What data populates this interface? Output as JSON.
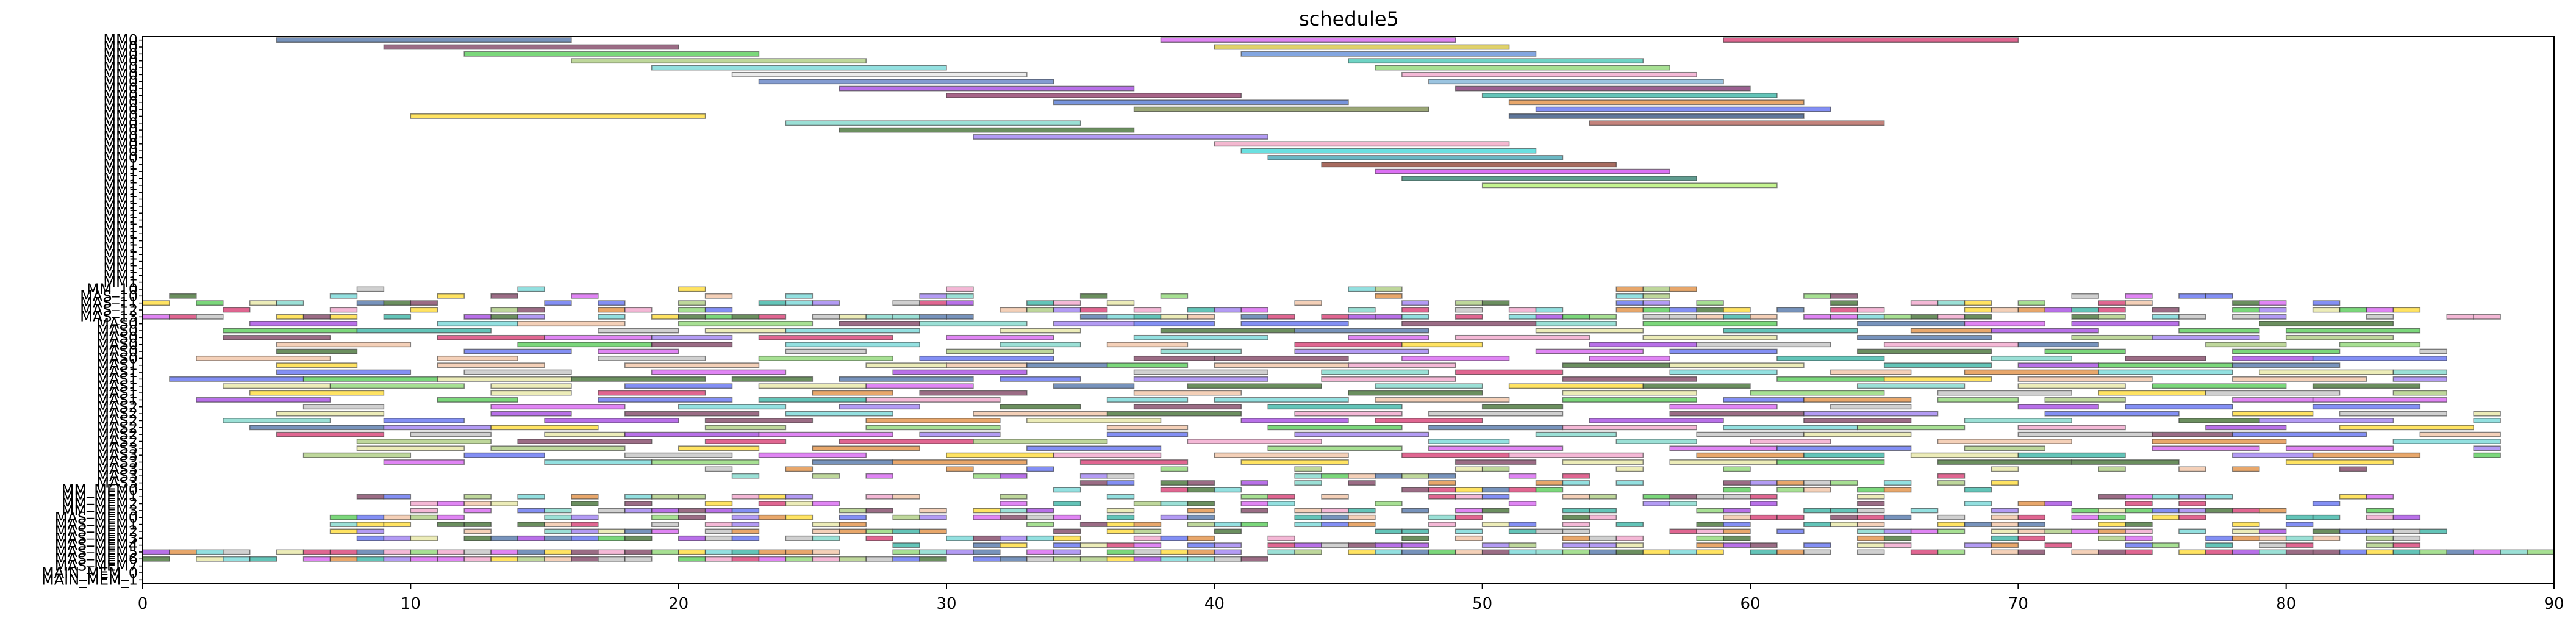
{
  "chart_data": {
    "type": "gantt",
    "title": "schedule5",
    "xlabel": "",
    "ylabel": "",
    "xlim": [
      0,
      90
    ],
    "xticks": [
      "0",
      "10",
      "20",
      "30",
      "40",
      "50",
      "60",
      "70",
      "80",
      "90"
    ],
    "grid": false,
    "rows": [
      "MM0",
      "MM0",
      "MM0",
      "MM0",
      "MM0",
      "MM0",
      "MM0",
      "MM0",
      "MM0",
      "MM0",
      "MM0",
      "MM0",
      "MM0",
      "MM0",
      "MM0",
      "MM0",
      "MM0",
      "MM0",
      "MM1",
      "MM1",
      "MM1",
      "MM1",
      "MM1",
      "MM1",
      "MM1",
      "MM1",
      "MM1",
      "MM1",
      "MM1",
      "MM1",
      "MM1",
      "MM1",
      "MM1",
      "MM1",
      "MM1",
      "MM1",
      "MM_10",
      "MAS_10",
      "MAS_11",
      "MAS_12",
      "MAS_13",
      "MAS0",
      "MAS0",
      "MAS0",
      "MAS0",
      "MAS0",
      "MAS0",
      "MAS1",
      "MAS1",
      "MAS1",
      "MAS1",
      "MAS1",
      "MAS1",
      "MAS2",
      "MAS2",
      "MAS2",
      "MAS2",
      "MAS2",
      "MAS2",
      "MAS3",
      "MAS3",
      "MAS3",
      "MAS3",
      "MAS3",
      "MAS3",
      "MM_MEM0",
      "MM_MEM1",
      "MM_MEM2",
      "MM_MEM3",
      "MAS_MEM0",
      "MAS_MEM1",
      "MAS_MEM2",
      "MAS_MEM3",
      "MAS_MEM4",
      "MAS_MEM5",
      "MAS_MEM6",
      "MAS_MEM7",
      "MAIN_MEM_0",
      "MAIN_MEM_1"
    ],
    "long_bars": [
      {
        "row": 0,
        "start": 5,
        "end": 16,
        "color": "#4a6fa5"
      },
      {
        "row": 0,
        "start": 38,
        "end": 49,
        "color": "#d65cf0"
      },
      {
        "row": 0,
        "start": 59,
        "end": 70,
        "color": "#d6336c"
      },
      {
        "row": 1,
        "start": 9,
        "end": 20,
        "color": "#7a3b5c"
      },
      {
        "row": 1,
        "start": 40,
        "end": 51,
        "color": "#d6c33a"
      },
      {
        "row": 2,
        "start": 12,
        "end": 23,
        "color": "#4fc94f"
      },
      {
        "row": 2,
        "start": 41,
        "end": 52,
        "color": "#5a88d6"
      },
      {
        "row": 3,
        "start": 16,
        "end": 27,
        "color": "#a8c97a"
      },
      {
        "row": 3,
        "start": 45,
        "end": 56,
        "color": "#3fc4b0"
      },
      {
        "row": 4,
        "start": 19,
        "end": 30,
        "color": "#6fd6d6"
      },
      {
        "row": 4,
        "start": 46,
        "end": 57,
        "color": "#8ad66f"
      },
      {
        "row": 5,
        "start": 22,
        "end": 33,
        "color": "#e6e6e6"
      },
      {
        "row": 5,
        "start": 47,
        "end": 58,
        "color": "#f0a0c8"
      },
      {
        "row": 6,
        "start": 23,
        "end": 34,
        "color": "#5a7ac0"
      },
      {
        "row": 6,
        "start": 48,
        "end": 59,
        "color": "#7ab0d6"
      },
      {
        "row": 7,
        "start": 26,
        "end": 37,
        "color": "#a040e0"
      },
      {
        "row": 7,
        "start": 49,
        "end": 60,
        "color": "#7a2b6c"
      },
      {
        "row": 8,
        "start": 30,
        "end": 41,
        "color": "#8a3060"
      },
      {
        "row": 8,
        "start": 50,
        "end": 61,
        "color": "#2fb0a0"
      },
      {
        "row": 9,
        "start": 34,
        "end": 45,
        "color": "#4a70d0"
      },
      {
        "row": 9,
        "start": 51,
        "end": 62,
        "color": "#e08a3a"
      },
      {
        "row": 10,
        "start": 37,
        "end": 48,
        "color": "#7a8a4a"
      },
      {
        "row": 10,
        "start": 52,
        "end": 63,
        "color": "#5a6af0"
      },
      {
        "row": 11,
        "start": 10,
        "end": 21,
        "color": "#ffd92e"
      },
      {
        "row": 11,
        "start": 51,
        "end": 62,
        "color": "#2a4a7a"
      },
      {
        "row": 12,
        "start": 24,
        "end": 35,
        "color": "#7ad6c8"
      },
      {
        "row": 12,
        "start": 54,
        "end": 65,
        "color": "#b05a50"
      },
      {
        "row": 13,
        "start": 26,
        "end": 37,
        "color": "#3a6a2a"
      },
      {
        "row": 14,
        "start": 31,
        "end": 42,
        "color": "#9a7af0"
      },
      {
        "row": 15,
        "start": 40,
        "end": 51,
        "color": "#f0a0c0"
      },
      {
        "row": 16,
        "start": 41,
        "end": 52,
        "color": "#3ad6d6"
      },
      {
        "row": 17,
        "start": 42,
        "end": 53,
        "color": "#3aa0b0"
      },
      {
        "row": 18,
        "start": 44,
        "end": 55,
        "color": "#8a3a2a"
      },
      {
        "row": 19,
        "start": 46,
        "end": 57,
        "color": "#d040f0"
      },
      {
        "row": 20,
        "start": 47,
        "end": 58,
        "color": "#2a7a6a"
      },
      {
        "row": 21,
        "start": 50,
        "end": 61,
        "color": "#b0f06a"
      }
    ],
    "short_bar_palette": [
      "#d6336c",
      "#4fc94f",
      "#5a6af0",
      "#f0a0c8",
      "#7ad6c8",
      "#e08a3a",
      "#8ad66f",
      "#a040e0",
      "#2fb0a0",
      "#ffd92e",
      "#7a3b5c",
      "#6fd6d6",
      "#d65cf0",
      "#a8c97a",
      "#4a6fa5",
      "#f0c0a0",
      "#3a6a2a",
      "#c0c0c0",
      "#9a7af0",
      "#e6e6a0"
    ],
    "short_bar_rows": [
      {
        "row": 36,
        "density": 0.2,
        "from": 2,
        "to": 60
      },
      {
        "row": 37,
        "density": 0.3,
        "from": 1,
        "to": 82
      },
      {
        "row": 38,
        "density": 0.45,
        "from": 0,
        "to": 84
      },
      {
        "row": 39,
        "density": 0.55,
        "from": 2,
        "to": 85
      },
      {
        "row": 40,
        "density": 0.6,
        "from": 0,
        "to": 88
      },
      {
        "row": 62,
        "density": 0.35,
        "from": 21,
        "to": 84
      },
      {
        "row": 63,
        "density": 0.4,
        "from": 22,
        "to": 68
      },
      {
        "row": 64,
        "density": 0.35,
        "from": 33,
        "to": 70
      },
      {
        "row": 65,
        "density": 0.4,
        "from": 33,
        "to": 72
      },
      {
        "row": 66,
        "density": 0.4,
        "from": 7,
        "to": 84
      },
      {
        "row": 67,
        "density": 0.45,
        "from": 7,
        "to": 84
      },
      {
        "row": 68,
        "density": 0.55,
        "from": 8,
        "to": 84
      },
      {
        "row": 69,
        "density": 0.55,
        "from": 7,
        "to": 85
      },
      {
        "row": 70,
        "density": 0.6,
        "from": 7,
        "to": 86
      },
      {
        "row": 71,
        "density": 0.6,
        "from": 7,
        "to": 86
      },
      {
        "row": 72,
        "density": 0.55,
        "from": 7,
        "to": 85
      },
      {
        "row": 73,
        "density": 0.65,
        "from": 28,
        "to": 86
      },
      {
        "row": 74,
        "density": 0.85,
        "from": 0,
        "to": 90
      },
      {
        "row": 75,
        "density": 0.95,
        "from": 0,
        "to": 42
      }
    ],
    "medium_bar_rows": [
      {
        "row": 41,
        "from": 2,
        "to": 86
      },
      {
        "row": 42,
        "from": 2,
        "to": 86
      },
      {
        "row": 43,
        "from": 2,
        "to": 86
      },
      {
        "row": 44,
        "from": 2,
        "to": 86
      },
      {
        "row": 45,
        "from": 2,
        "to": 86
      },
      {
        "row": 46,
        "from": 2,
        "to": 86
      },
      {
        "row": 47,
        "from": 2,
        "to": 86
      },
      {
        "row": 48,
        "from": 2,
        "to": 86
      },
      {
        "row": 49,
        "from": 1,
        "to": 86
      },
      {
        "row": 50,
        "from": 1,
        "to": 86
      },
      {
        "row": 51,
        "from": 1,
        "to": 86
      },
      {
        "row": 52,
        "from": 1,
        "to": 86
      },
      {
        "row": 53,
        "from": 3,
        "to": 88
      },
      {
        "row": 54,
        "from": 3,
        "to": 88
      },
      {
        "row": 55,
        "from": 3,
        "to": 88
      },
      {
        "row": 56,
        "from": 3,
        "to": 88
      },
      {
        "row": 57,
        "from": 5,
        "to": 88
      },
      {
        "row": 58,
        "from": 5,
        "to": 88
      },
      {
        "row": 59,
        "from": 5,
        "to": 88
      },
      {
        "row": 60,
        "from": 5,
        "to": 88
      },
      {
        "row": 61,
        "from": 7,
        "to": 86
      }
    ]
  }
}
